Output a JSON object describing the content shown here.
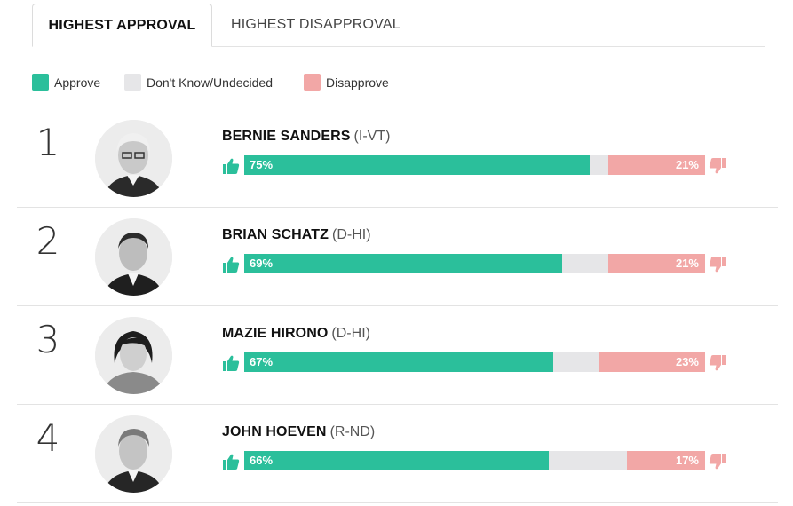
{
  "tabs": [
    {
      "label": "HIGHEST APPROVAL",
      "active": true
    },
    {
      "label": "HIGHEST DISAPPROVAL",
      "active": false
    }
  ],
  "legend": [
    {
      "label": "Approve",
      "color": "#2bbf9b"
    },
    {
      "label": "Don't Know/Undecided",
      "color": "#e6e6e8"
    },
    {
      "label": "Disapprove",
      "color": "#f2a7a6"
    }
  ],
  "senators": [
    {
      "rank": "1",
      "name": "BERNIE SANDERS",
      "party": "(I-VT)",
      "approve": 75,
      "disapprove": 21,
      "approve_label": "75%",
      "disapprove_label": "21%"
    },
    {
      "rank": "2",
      "name": "BRIAN SCHATZ",
      "party": "(D-HI)",
      "approve": 69,
      "disapprove": 21,
      "approve_label": "69%",
      "disapprove_label": "21%"
    },
    {
      "rank": "3",
      "name": "MAZIE HIRONO",
      "party": "(D-HI)",
      "approve": 67,
      "disapprove": 23,
      "approve_label": "67%",
      "disapprove_label": "23%"
    },
    {
      "rank": "4",
      "name": "JOHN HOEVEN",
      "party": "(R-ND)",
      "approve": 66,
      "disapprove": 17,
      "approve_label": "66%",
      "disapprove_label": "17%"
    }
  ],
  "icons": {
    "approve": "thumbs-up-icon",
    "disapprove": "thumbs-down-icon"
  }
}
